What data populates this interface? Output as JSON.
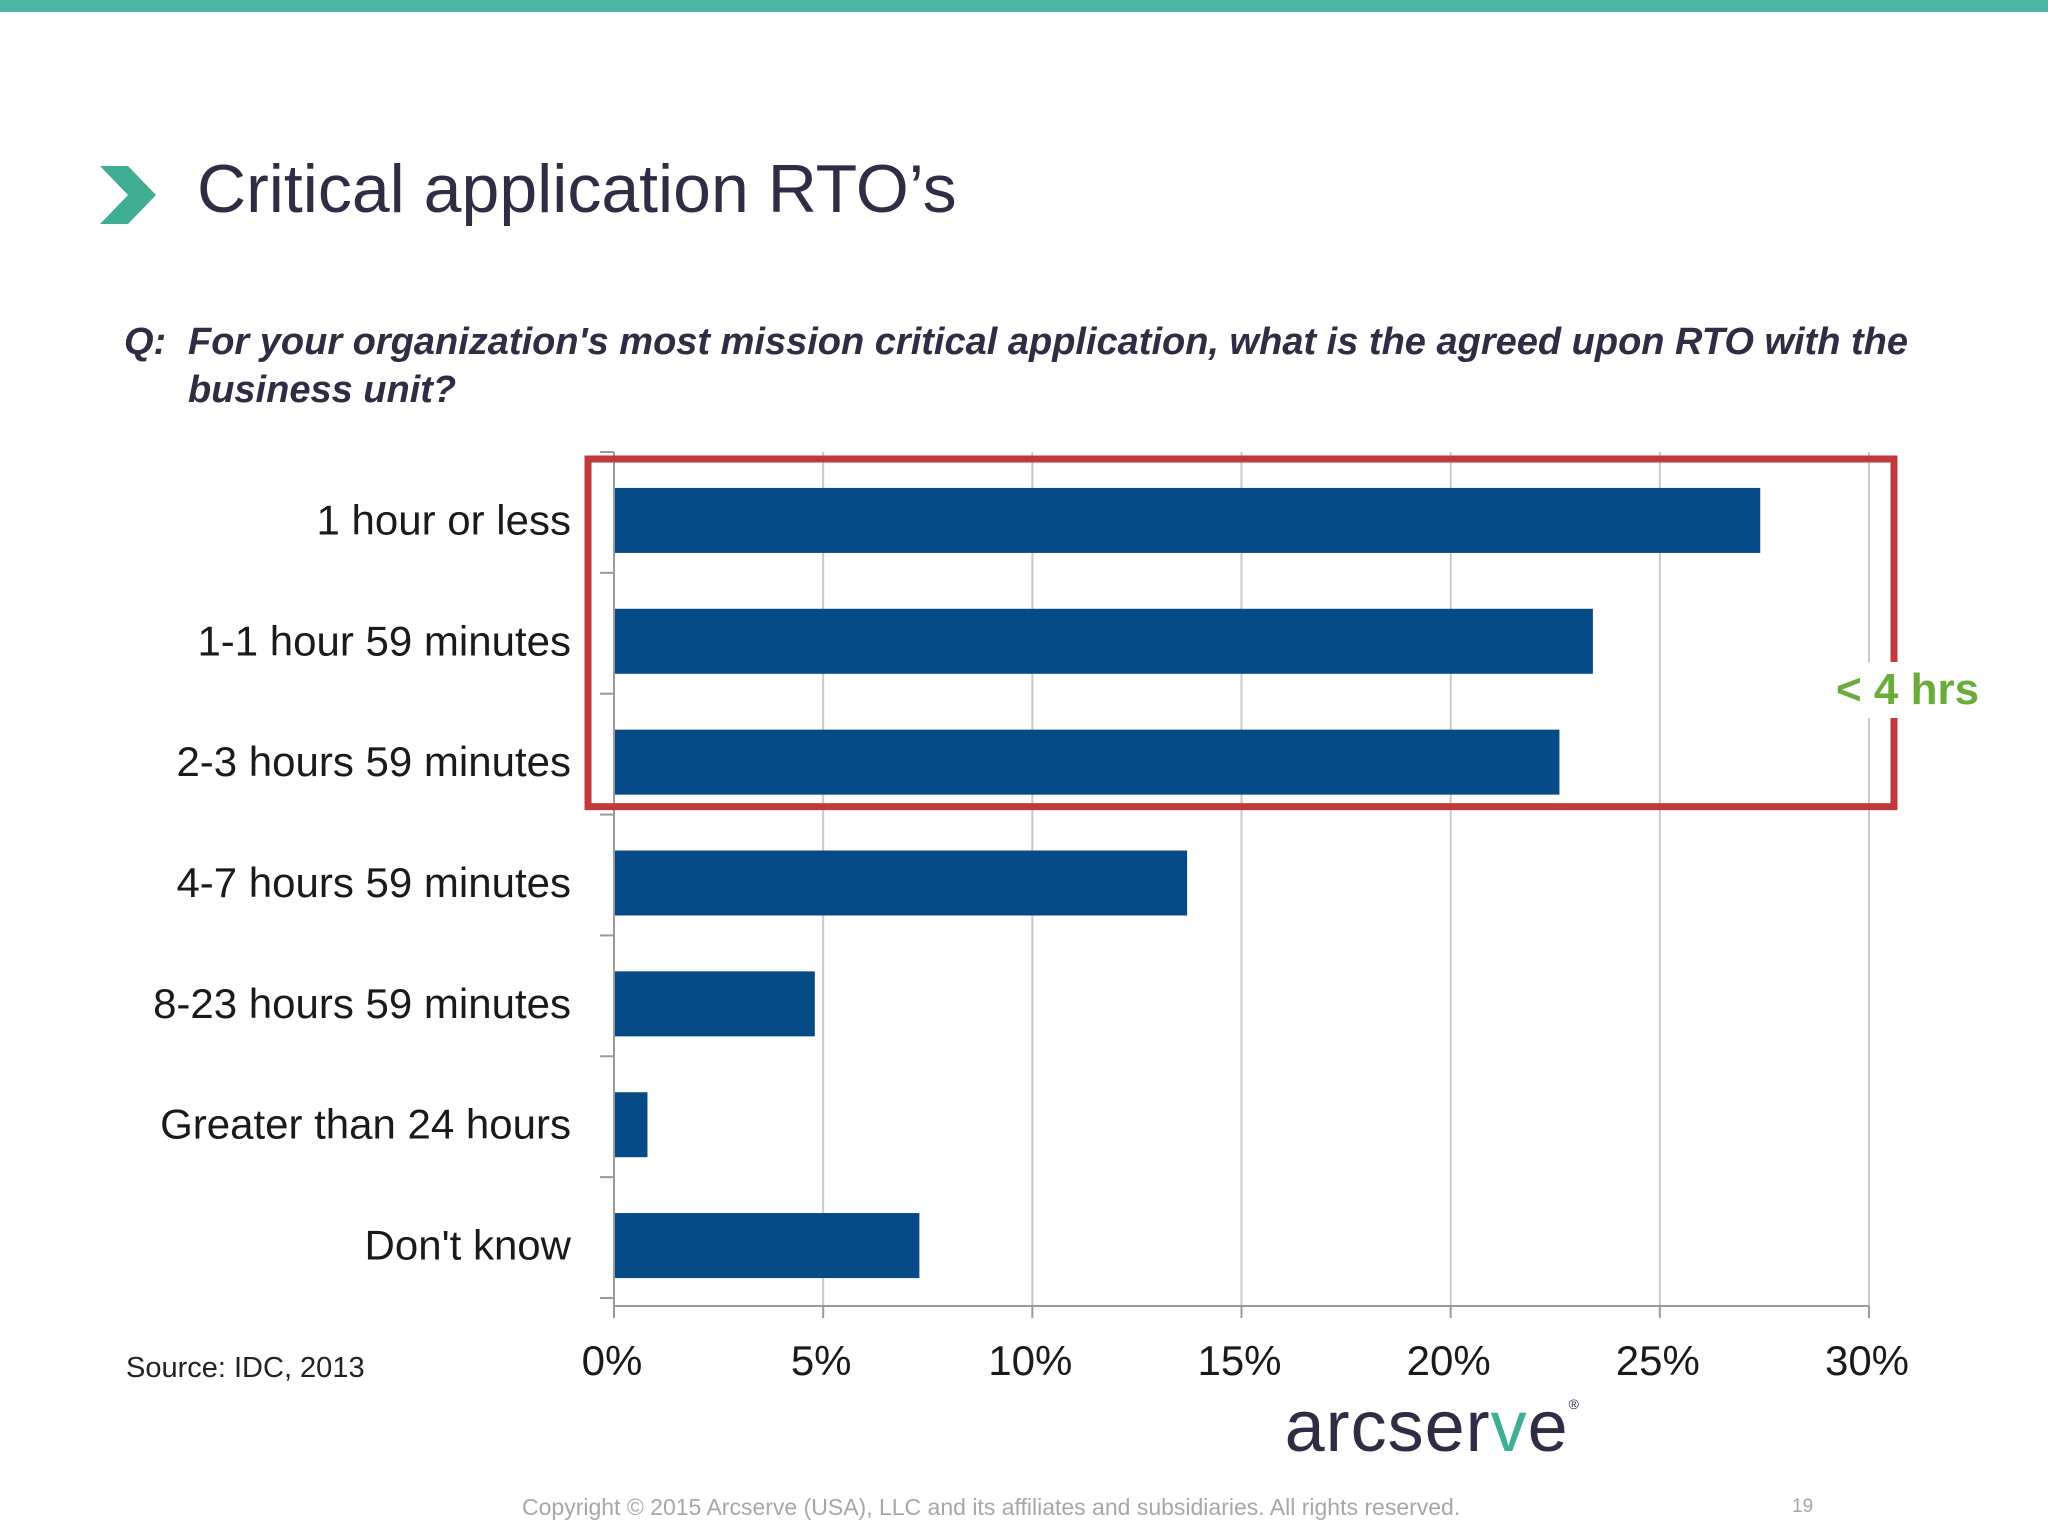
{
  "slide": {
    "title": "Critical application RTO’s",
    "question_prefix": "Q:",
    "question": "For your organization's most mission critical application, what is the agreed upon RTO with the business unit?",
    "source": "Source:  IDC, 2013",
    "logo": {
      "text_main": "arcser",
      "text_accent": "v",
      "text_end": "e",
      "registered": "®"
    },
    "copyright": "Copyright © 2015 Arcserve (USA), LLC and its affiliates and subsidiaries. All rights reserved.",
    "page_number": "19",
    "highlight_label": "< 4 hrs",
    "colors": {
      "accent_teal": "#4fb7a1",
      "bar": "#064a87",
      "highlight_box": "#c0393b",
      "highlight_label": "#6aac3c",
      "title_text": "#2e2d44"
    },
    "icons": {
      "title_marker": "chevron-right-icon"
    }
  },
  "chart_data": {
    "type": "bar",
    "orientation": "horizontal",
    "categories": [
      "1 hour or less",
      "1-1 hour 59 minutes",
      "2-3 hours 59 minutes",
      "4-7 hours 59 minutes",
      "8-23 hours 59 minutes",
      "Greater than 24 hours",
      "Don't know"
    ],
    "values": [
      27.4,
      23.4,
      22.6,
      13.7,
      4.8,
      0.8,
      7.3
    ],
    "value_unit": "%",
    "xlim": [
      0,
      30
    ],
    "x_ticks": [
      0,
      5,
      10,
      15,
      20,
      25,
      30
    ],
    "x_tick_labels": [
      "0%",
      "5%",
      "10%",
      "15%",
      "20%",
      "25%",
      "30%"
    ],
    "grid": true,
    "title": "",
    "xlabel": "",
    "ylabel": "",
    "highlight": {
      "categories": [
        "1 hour or less",
        "1-1 hour 59 minutes",
        "2-3 hours 59 minutes"
      ],
      "label": "< 4 hrs"
    }
  }
}
